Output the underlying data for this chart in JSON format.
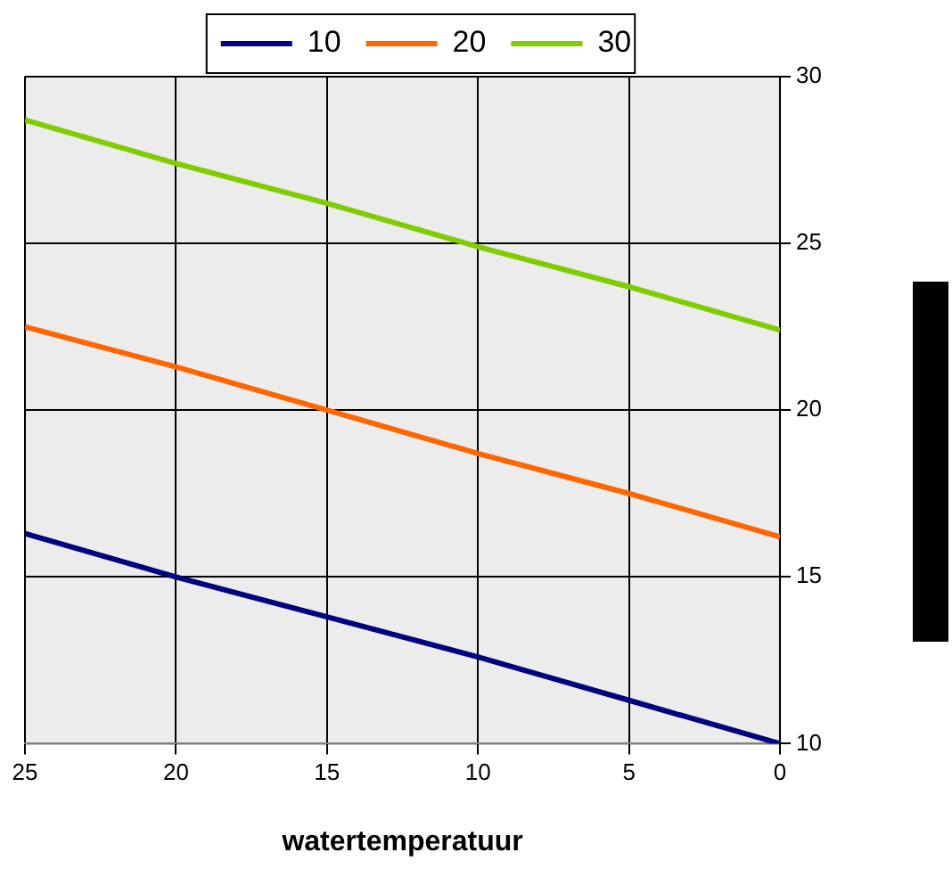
{
  "chart_data": {
    "type": "line",
    "xlabel": "watertemperatuur",
    "x": [
      25,
      20,
      15,
      10,
      5,
      0
    ],
    "series": [
      {
        "name": "10",
        "color": "#000080",
        "values": [
          16.3,
          15.0,
          13.8,
          12.6,
          11.3,
          10.0
        ]
      },
      {
        "name": "20",
        "color": "#ff6600",
        "values": [
          22.5,
          21.3,
          20.0,
          18.7,
          17.5,
          16.2
        ]
      },
      {
        "name": "30",
        "color": "#80cc00",
        "values": [
          28.7,
          27.4,
          26.2,
          24.9,
          23.7,
          22.4
        ]
      }
    ],
    "xlim": [
      25,
      0
    ],
    "xticks": [
      25,
      20,
      15,
      10,
      5,
      0
    ],
    "ylim": [
      10,
      30
    ],
    "yticks": [
      10,
      15,
      20,
      25,
      30
    ],
    "grid": true,
    "legend": "top",
    "marker": "none",
    "line_style": "solid"
  }
}
